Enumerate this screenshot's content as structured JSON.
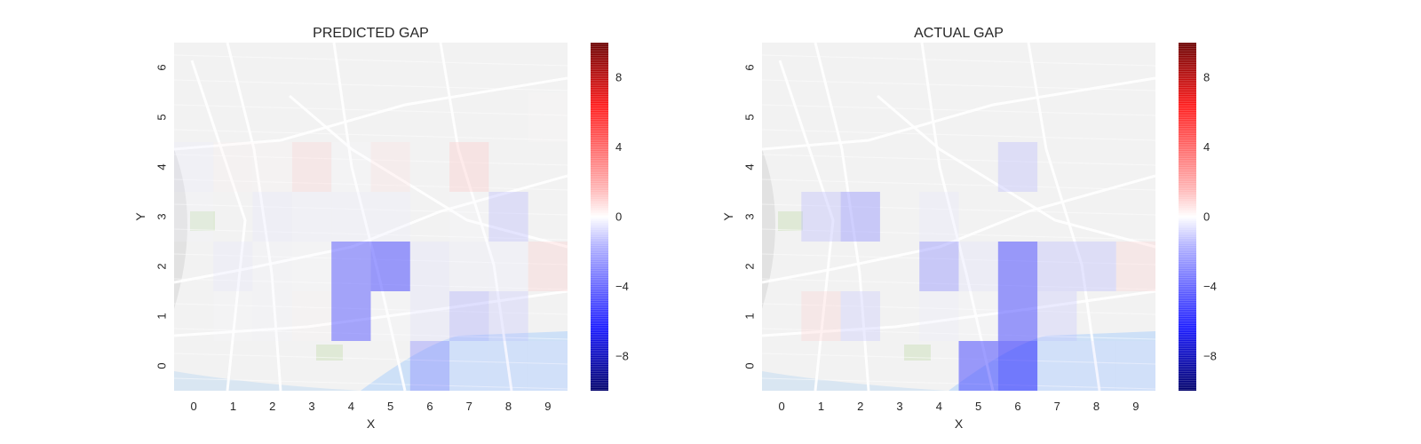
{
  "chart_data": [
    {
      "type": "heatmap",
      "title": "PREDICTED GAP",
      "xlabel": "X",
      "ylabel": "Y",
      "x_ticks": [
        "0",
        "1",
        "2",
        "3",
        "4",
        "5",
        "6",
        "7",
        "8",
        "9"
      ],
      "y_ticks": [
        "0",
        "1",
        "2",
        "3",
        "4",
        "5",
        "6"
      ],
      "background": "map",
      "colorbar": {
        "ticks": [
          "8",
          "4",
          "0",
          "−4",
          "−8"
        ],
        "values": [
          8,
          4,
          0,
          -4,
          -8
        ],
        "range": [
          -10,
          10
        ],
        "colormap": "seismic"
      },
      "values": [
        [
          0,
          0,
          0,
          0,
          0,
          0,
          -4.5,
          -1.2,
          -1.2,
          -1.2
        ],
        [
          0,
          -0.3,
          -0.5,
          0.4,
          -6.5,
          -0.3,
          -1.5,
          -3.5,
          -2.5,
          0
        ],
        [
          0,
          -1.2,
          -0.5,
          -0.3,
          -6.5,
          -7,
          -1.5,
          -0.8,
          -1,
          2.2
        ],
        [
          -0.4,
          0,
          -1.2,
          -1,
          -1,
          -1,
          0,
          -0.3,
          -3,
          0
        ],
        [
          -1,
          0.6,
          0.5,
          2,
          -0.3,
          1.5,
          0,
          2.5,
          0,
          0
        ],
        [
          0,
          0,
          0,
          0,
          0,
          0,
          0,
          0,
          0,
          0.3
        ],
        [
          0,
          0,
          0,
          0,
          0,
          0,
          0,
          0,
          0,
          0
        ]
      ]
    },
    {
      "type": "heatmap",
      "title": "ACTUAL GAP",
      "xlabel": "X",
      "ylabel": "Y",
      "x_ticks": [
        "0",
        "1",
        "2",
        "3",
        "4",
        "5",
        "6",
        "7",
        "8",
        "9"
      ],
      "y_ticks": [
        "0",
        "1",
        "2",
        "3",
        "4",
        "5",
        "6"
      ],
      "background": "map",
      "colorbar": {
        "ticks": [
          "8",
          "4",
          "0",
          "−4",
          "−8"
        ],
        "values": [
          8,
          4,
          0,
          -4,
          -8
        ],
        "range": [
          -10,
          10
        ],
        "colormap": "seismic"
      },
      "values": [
        [
          0,
          0,
          0,
          0,
          0,
          -7,
          -8,
          -1.2,
          -1.2,
          -1.2
        ],
        [
          0,
          2,
          -2.5,
          0,
          -1,
          -0.3,
          -7,
          -2.5,
          0,
          0
        ],
        [
          0,
          0,
          0,
          0,
          -4.5,
          -1.5,
          -7,
          -3,
          -3,
          2
        ],
        [
          0,
          -3,
          -4.5,
          0,
          -1.2,
          0,
          0,
          0,
          0,
          0
        ],
        [
          0,
          0,
          0,
          0,
          0,
          0,
          -3,
          0,
          0,
          0
        ],
        [
          0,
          0,
          0,
          0,
          0,
          0,
          0,
          0,
          0,
          0
        ],
        [
          0,
          0,
          0,
          0,
          0,
          0,
          0,
          0,
          0,
          0
        ]
      ]
    }
  ]
}
